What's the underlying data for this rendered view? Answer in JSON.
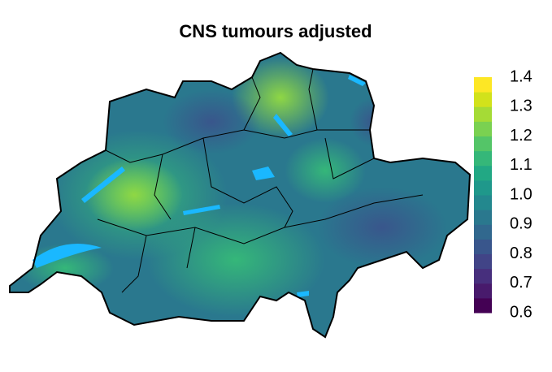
{
  "map": {
    "title": "CNS tumours adjusted",
    "legend": {
      "lim": [
        0.6,
        1.4
      ],
      "ticks": [
        0.6,
        0.7,
        0.8,
        0.9,
        {
          "value": 1,
          "label": "1.0"
        },
        1.1,
        1.2,
        1.3,
        1.4
      ],
      "colors": [
        "#440154",
        "#481a6c",
        "#472f7d",
        "#414487",
        "#39568c",
        "#31688e",
        "#2a788e",
        "#23888e",
        "#1f988b",
        "#22a884",
        "#35b779",
        "#54c568",
        "#7ad151",
        "#a5db36",
        "#d2e21b",
        "#fde725"
      ]
    }
  }
}
